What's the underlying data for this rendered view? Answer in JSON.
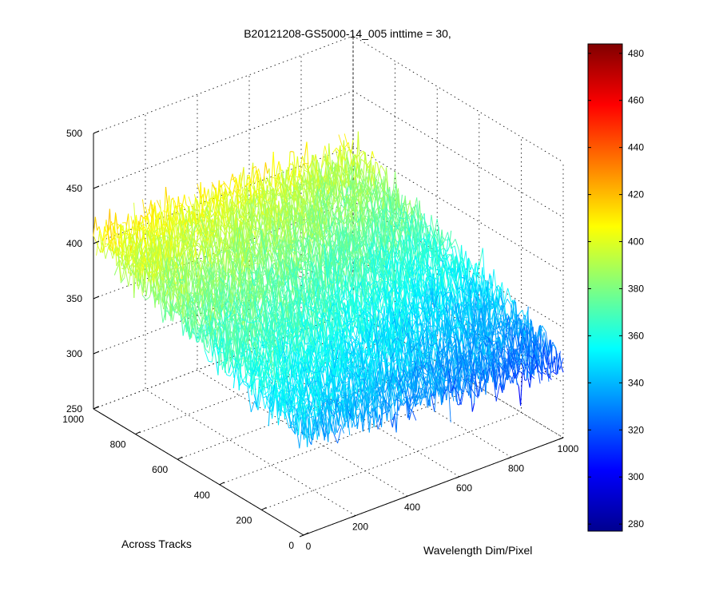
{
  "chart_data": {
    "type": "surface-3d",
    "title": "B20121208-GS5000-14_005 inttime = 30,",
    "x_axis": {
      "label": "Wavelength Dim/Pixel",
      "range": [
        0,
        1000
      ],
      "ticks": [
        "0",
        "200",
        "400",
        "600",
        "800",
        "1000"
      ]
    },
    "y_axis": {
      "label": "Across Tracks",
      "range": [
        0,
        1000
      ],
      "ticks": [
        "0",
        "200",
        "400",
        "600",
        "800",
        "1000"
      ]
    },
    "z_axis": {
      "label": "",
      "range": [
        250,
        500
      ],
      "ticks": [
        "250",
        "300",
        "350",
        "400",
        "450",
        "500"
      ]
    },
    "colorbar": {
      "range": [
        277,
        484
      ],
      "ticks": [
        "280",
        "300",
        "320",
        "340",
        "360",
        "380",
        "400",
        "420",
        "440",
        "460",
        "480"
      ],
      "colormap": "jet"
    },
    "surface_corner_values": {
      "wavelength_0_across_0": 345,
      "wavelength_1000_across_0": 320,
      "wavelength_0_across_1000": 405,
      "wavelength_1000_across_1000": 395
    },
    "grid": true
  }
}
